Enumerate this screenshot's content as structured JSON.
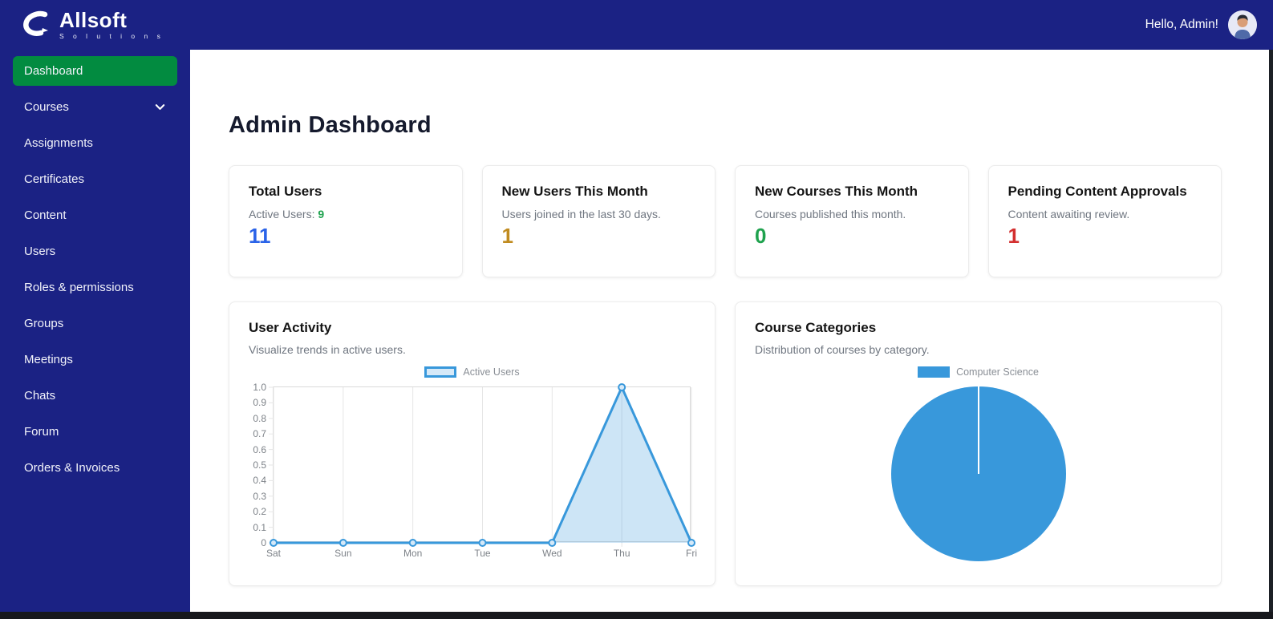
{
  "theme": {
    "navy": "#1b2284",
    "active_green": "#028b40",
    "chart_blue": "#3898db"
  },
  "topbar": {
    "brand": "Allsoft",
    "brand_sub": "S o l u t i o n s",
    "greeting": "Hello, Admin!"
  },
  "sidebar": {
    "items": [
      {
        "label": "Dashboard",
        "active": true,
        "has_submenu": false
      },
      {
        "label": "Courses",
        "active": false,
        "has_submenu": true
      },
      {
        "label": "Assignments",
        "active": false,
        "has_submenu": false
      },
      {
        "label": "Certificates",
        "active": false,
        "has_submenu": false
      },
      {
        "label": "Content",
        "active": false,
        "has_submenu": false
      },
      {
        "label": "Users",
        "active": false,
        "has_submenu": false
      },
      {
        "label": "Roles & permissions",
        "active": false,
        "has_submenu": false
      },
      {
        "label": "Groups",
        "active": false,
        "has_submenu": false
      },
      {
        "label": "Meetings",
        "active": false,
        "has_submenu": false
      },
      {
        "label": "Chats",
        "active": false,
        "has_submenu": false
      },
      {
        "label": "Forum",
        "active": false,
        "has_submenu": false
      },
      {
        "label": "Orders & Invoices",
        "active": false,
        "has_submenu": false
      }
    ]
  },
  "page": {
    "title": "Admin Dashboard"
  },
  "stat_cards": [
    {
      "title": "Total Users",
      "subtitle": "Active Users:",
      "subtitle_value": "9",
      "subtitle_value_color": "#1fa24e",
      "value": "11",
      "value_color": "#2a63e8"
    },
    {
      "title": "New Users This Month",
      "subtitle": "Users joined in the last 30 days.",
      "subtitle_value": "",
      "subtitle_value_color": "",
      "value": "1",
      "value_color": "#c08b1f"
    },
    {
      "title": "New Courses This Month",
      "subtitle": "Courses published this month.",
      "subtitle_value": "",
      "subtitle_value_color": "",
      "value": "0",
      "value_color": "#1fa24e"
    },
    {
      "title": "Pending Content Approvals",
      "subtitle": "Content awaiting review.",
      "subtitle_value": "",
      "subtitle_value_color": "",
      "value": "1",
      "value_color": "#d32f2f"
    }
  ],
  "activity_chart": {
    "title": "User Activity",
    "subtitle": "Visualize trends in active users."
  },
  "category_chart": {
    "title": "Course Categories",
    "subtitle": "Distribution of courses by category."
  },
  "chart_data": [
    {
      "type": "area",
      "title": "User Activity",
      "categories": [
        "Sat",
        "Sun",
        "Mon",
        "Tue",
        "Wed",
        "Thu",
        "Fri"
      ],
      "series": [
        {
          "name": "Active Users",
          "values": [
            0,
            0,
            0,
            0,
            0,
            1,
            0
          ]
        }
      ],
      "ylim": [
        0,
        1
      ],
      "y_ticks": [
        "1.0",
        "0.9",
        "0.8",
        "0.7",
        "0.6",
        "0.5",
        "0.4",
        "0.3",
        "0.2",
        "0.1",
        "0"
      ],
      "grid": "vertical",
      "legend_position": "top",
      "line_color": "#3898db",
      "fill_color": "rgba(56,152,219,0.25)",
      "point_fill": "#d6e9f8"
    },
    {
      "type": "pie",
      "title": "Course Categories",
      "labels": [
        "Computer Science"
      ],
      "values": [
        100
      ],
      "colors": [
        "#3898db"
      ],
      "legend_position": "top"
    }
  ]
}
